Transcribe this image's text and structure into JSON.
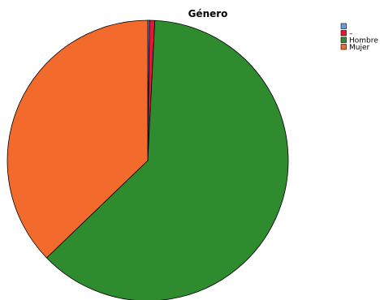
{
  "chart_data": {
    "type": "pie",
    "title": "Género",
    "categories": [
      "",
      "–",
      "Hombre",
      "Mujer"
    ],
    "values": [
      0.2,
      0.6,
      62.0,
      37.2
    ],
    "colors": [
      "#6b9be0",
      "#e31837",
      "#2e8b2e",
      "#f26b2c"
    ],
    "start_angle_deg": 0,
    "direction": "clockwise",
    "legend_position": "top-right"
  }
}
